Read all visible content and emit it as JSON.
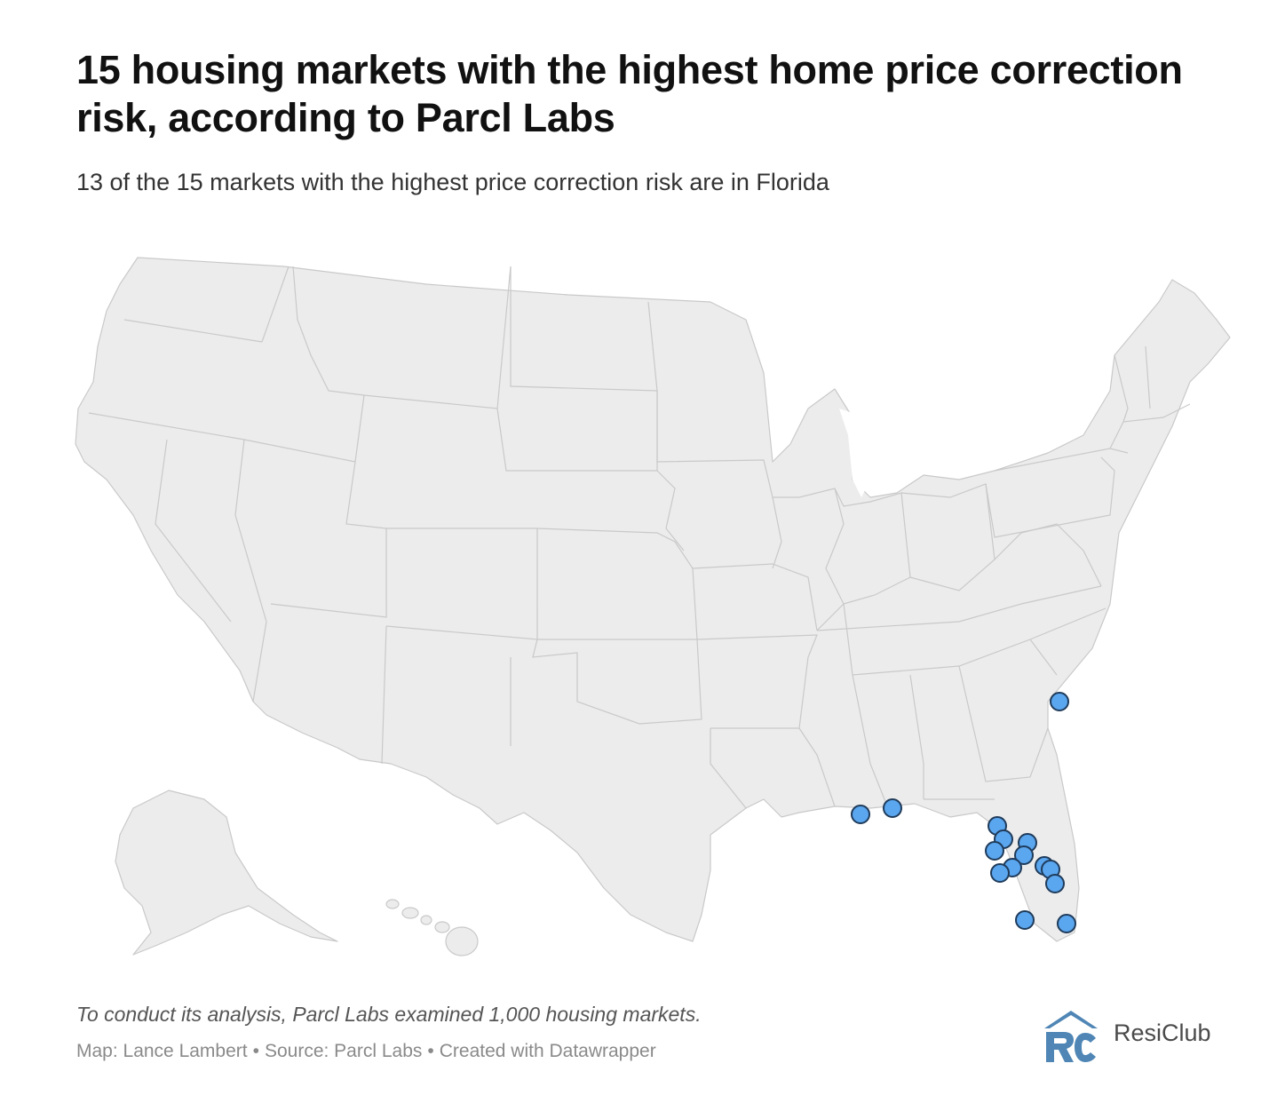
{
  "title": "15 housing markets with the highest home price correction risk, according to Parcl Labs",
  "subtitle": "13 of the 15 markets with the highest price correction risk are in Florida",
  "note": "To conduct its analysis, Parcl Labs examined 1,000 housing markets.",
  "credits": {
    "map": "Map: Lance Lambert",
    "source": "Source: Parcl Labs",
    "tool": "Created with Datawrapper",
    "separator": "•"
  },
  "logo": {
    "text": "ResiClub",
    "color": "#4f86b5"
  },
  "map": {
    "land_color": "#ececec",
    "border_color": "#c9c9c9",
    "marker_color": "#5aa6ef",
    "marker_stroke": "#1f3b5a",
    "markers_count": 15
  }
}
